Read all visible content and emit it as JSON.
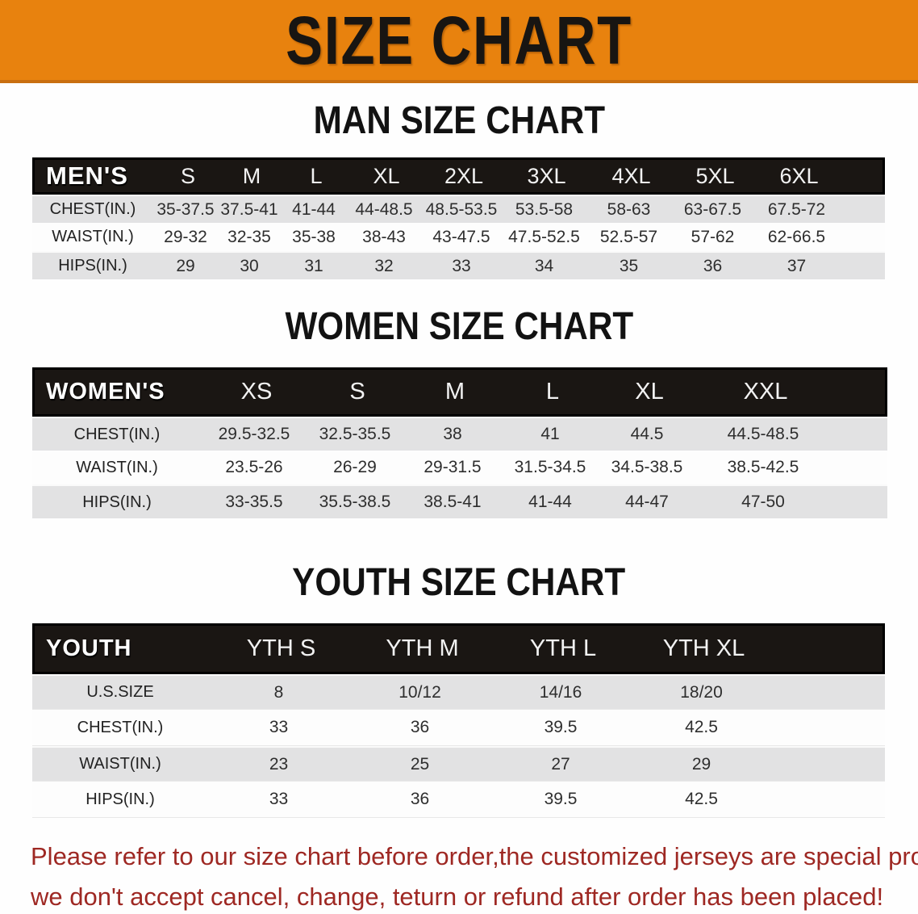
{
  "banner": {
    "title": "SIZE CHART"
  },
  "colors": {
    "banner_bg": "#e8820e",
    "banner_edge": "#c96f10",
    "header_bar_bg": "#1a1613",
    "row_gray": "#e2e2e3",
    "row_white": "#fdfdfd",
    "note_red": "#9e2823"
  },
  "man_section": {
    "heading": "MAN SIZE CHART",
    "table": {
      "header": [
        "MEN'S",
        "S",
        "M",
        "L",
        "XL",
        "2XL",
        "3XL",
        "4XL",
        "5XL",
        "6XL"
      ],
      "rows": [
        [
          "CHEST(IN.)",
          "35-37.5",
          "37.5-41",
          "41-44",
          "44-48.5",
          "48.5-53.5",
          "53.5-58",
          "58-63",
          "63-67.5",
          "67.5-72"
        ],
        [
          "WAIST(IN.)",
          "29-32",
          "32-35",
          "35-38",
          "38-43",
          "43-47.5",
          "47.5-52.5",
          "52.5-57",
          "57-62",
          "62-66.5"
        ],
        [
          "HIPS(IN.)",
          "29",
          "30",
          "31",
          "32",
          "33",
          "34",
          "35",
          "36",
          "37"
        ]
      ]
    }
  },
  "women_section": {
    "heading": "WOMEN SIZE CHART",
    "table": {
      "header": [
        "WOMEN'S",
        "XS",
        "S",
        "M",
        "L",
        "XL",
        "XXL"
      ],
      "rows": [
        [
          "CHEST(IN.)",
          "29.5-32.5",
          "32.5-35.5",
          "38",
          "41",
          "44.5",
          "44.5-48.5"
        ],
        [
          "WAIST(IN.)",
          "23.5-26",
          "26-29",
          "29-31.5",
          "31.5-34.5",
          "34.5-38.5",
          "38.5-42.5"
        ],
        [
          "HIPS(IN.)",
          "33-35.5",
          "35.5-38.5",
          "38.5-41",
          "41-44",
          "44-47",
          "47-50"
        ]
      ]
    }
  },
  "youth_section": {
    "heading": "YOUTH SIZE CHART",
    "table": {
      "header": [
        "YOUTH",
        "YTH S",
        "YTH M",
        "YTH L",
        "YTH XL"
      ],
      "rows": [
        [
          "U.S.SIZE",
          "8",
          "10/12",
          "14/16",
          "18/20"
        ],
        [
          "CHEST(IN.)",
          "33",
          "36",
          "39.5",
          "42.5"
        ],
        [
          "WAIST(IN.)",
          "23",
          "25",
          "27",
          "29"
        ],
        [
          "HIPS(IN.)",
          "33",
          "36",
          "39.5",
          "42.5"
        ]
      ]
    }
  },
  "note": {
    "line1": "Please refer to our size chart before order,the customized jerseys are special products,",
    "line2": "we don't accept cancel, change, teturn or refund after order has been placed!"
  }
}
